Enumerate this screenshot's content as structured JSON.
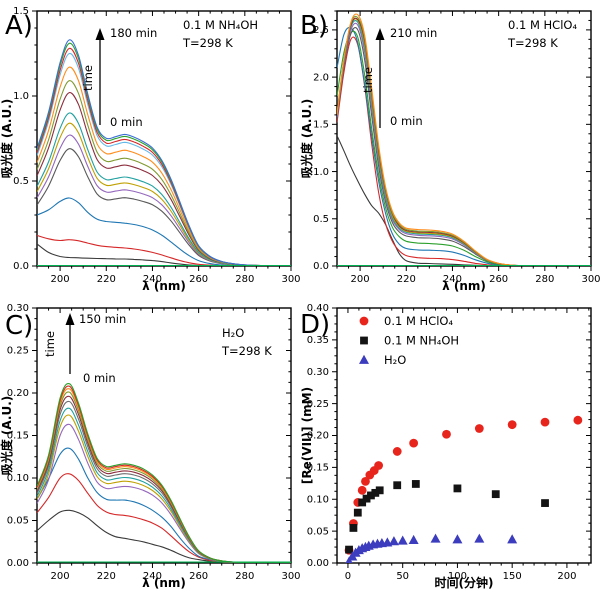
{
  "figure": {
    "background": "#ffffff"
  },
  "chart_data": [
    {
      "id": "A",
      "type": "line",
      "panel_label": "A)",
      "annotation_lines": [
        "0.1 M NH₄OH",
        "T=298 K"
      ],
      "arrow": {
        "top_label": "180 min",
        "bottom_label": "0 min",
        "side_label": "time"
      },
      "xlabel": "λ (nm)",
      "ylabel": "吸光度 (A.U.)",
      "xlim": [
        190,
        300
      ],
      "ylim": [
        0,
        1.5
      ],
      "xticks": [
        200,
        220,
        240,
        260,
        280,
        300
      ],
      "yticks": [
        0.0,
        0.5,
        1.0,
        1.5
      ],
      "y_decimals": 1,
      "x_minor_step": 5,
      "y_minor_step": 0.1,
      "wavelengths": [
        190,
        195,
        200,
        204,
        208,
        212,
        216,
        220,
        224,
        228,
        232,
        236,
        240,
        244,
        248,
        252,
        256,
        260,
        265,
        270,
        275,
        280,
        290,
        300
      ],
      "base_shape": [
        0.52,
        0.68,
        0.9,
        1.0,
        0.93,
        0.76,
        0.615,
        0.565,
        0.572,
        0.582,
        0.57,
        0.55,
        0.522,
        0.468,
        0.385,
        0.28,
        0.175,
        0.09,
        0.042,
        0.02,
        0.01,
        0.005,
        0.001,
        0
      ],
      "series": [
        {
          "color": "#3a3a3a",
          "values": [
            0.13,
            0.08,
            0.056,
            0.05,
            0.048,
            0.046,
            0.044,
            0.043,
            0.042,
            0.041,
            0.039,
            0.036,
            0.032,
            0.026,
            0.018,
            0.011,
            0.006,
            0.003,
            0.002,
            0.001,
            0,
            0,
            0,
            0
          ]
        },
        {
          "color": "#d62728",
          "values": [
            0.18,
            0.16,
            0.15,
            0.155,
            0.148,
            0.135,
            0.122,
            0.114,
            0.11,
            0.106,
            0.1,
            0.092,
            0.08,
            0.065,
            0.048,
            0.032,
            0.019,
            0.01,
            0.005,
            0.002,
            0.001,
            0,
            0,
            0
          ]
        },
        {
          "color": "#1f77b4",
          "values": [
            0.3,
            0.33,
            0.38,
            0.4,
            0.372,
            0.315,
            0.276,
            0.262,
            0.257,
            0.252,
            0.244,
            0.232,
            0.212,
            0.182,
            0.142,
            0.098,
            0.06,
            0.032,
            0.014,
            0.006,
            0.003,
            0.001,
            0,
            0
          ]
        },
        {
          "color": "#595959",
          "amp": 0.69
        },
        {
          "color": "#9467bd",
          "amp": 0.77
        },
        {
          "color": "#bfa000",
          "amp": 0.84
        },
        {
          "color": "#20a0a0",
          "amp": 0.9
        },
        {
          "color": "#8c2d3c",
          "amp": 1.02
        },
        {
          "color": "#7f9a2e",
          "amp": 1.09
        },
        {
          "color": "#ff8c1a",
          "amp": 1.17
        },
        {
          "color": "#63b8e8",
          "amp": 1.25
        },
        {
          "color": "#d62728",
          "amp": 1.28
        },
        {
          "color": "#2ca02c",
          "amp": 1.31
        },
        {
          "color": "#3b6fd4",
          "amp": 1.33
        },
        {
          "color": "#00b050",
          "flat": 0.003
        }
      ]
    },
    {
      "id": "B",
      "type": "line",
      "panel_label": "B)",
      "annotation_lines": [
        "0.1 M HClO₄",
        "T=298 K"
      ],
      "arrow": {
        "top_label": "210 min",
        "bottom_label": "0 min",
        "side_label": "time"
      },
      "xlabel": "λ (nm)",
      "ylabel": "吸光度 (A.U.)",
      "xlim": [
        190,
        300
      ],
      "ylim": [
        0,
        2.7
      ],
      "xticks": [
        200,
        220,
        240,
        260,
        280,
        300
      ],
      "yticks": [
        0.0,
        0.5,
        1.0,
        1.5,
        2.0,
        2.5
      ],
      "y_decimals": 1,
      "x_minor_step": 5,
      "y_minor_step": 0.1,
      "wavelengths": [
        190,
        193,
        196,
        199,
        202,
        205,
        208,
        211,
        214,
        217,
        220,
        225,
        230,
        235,
        240,
        245,
        250,
        255,
        260,
        265,
        270,
        280,
        290,
        300
      ],
      "base_shape": null,
      "series": [
        {
          "color": "#3a3a3a",
          "values": [
            1.38,
            1.22,
            1.05,
            0.9,
            0.76,
            0.64,
            0.56,
            0.44,
            0.28,
            0.13,
            0.055,
            0.03,
            0.026,
            0.022,
            0.018,
            0.012,
            0.007,
            0.004,
            0.002,
            0.001,
            0,
            0,
            0,
            0
          ]
        },
        {
          "color": "#d62728",
          "values": [
            1.52,
            2.05,
            2.4,
            2.34,
            1.9,
            1.3,
            0.78,
            0.45,
            0.26,
            0.16,
            0.11,
            0.088,
            0.082,
            0.078,
            0.068,
            0.05,
            0.028,
            0.013,
            0.006,
            0.002,
            0.001,
            0,
            0,
            0
          ]
        },
        {
          "color": "#1f77b4",
          "values": [
            2.1,
            2.45,
            2.52,
            2.36,
            1.92,
            1.38,
            0.9,
            0.56,
            0.34,
            0.23,
            0.185,
            0.17,
            0.167,
            0.162,
            0.147,
            0.112,
            0.066,
            0.03,
            0.012,
            0.005,
            0.002,
            0,
            0,
            0
          ]
        },
        {
          "color": "#2ca02c",
          "values": [
            1.8,
            2.26,
            2.47,
            2.42,
            2.02,
            1.46,
            0.97,
            0.62,
            0.41,
            0.31,
            0.262,
            0.243,
            0.238,
            0.23,
            0.212,
            0.166,
            0.1,
            0.045,
            0.018,
            0.007,
            0.002,
            0,
            0,
            0
          ]
        },
        {
          "color": "#595959",
          "values": [
            1.56,
            2.1,
            2.46,
            2.5,
            2.18,
            1.6,
            1.06,
            0.68,
            0.46,
            0.36,
            0.318,
            0.3,
            0.296,
            0.287,
            0.264,
            0.206,
            0.126,
            0.056,
            0.022,
            0.008,
            0.003,
            0,
            0,
            0
          ]
        },
        {
          "color": "#9467bd",
          "values": [
            1.58,
            2.13,
            2.5,
            2.55,
            2.26,
            1.68,
            1.12,
            0.72,
            0.49,
            0.385,
            0.342,
            0.325,
            0.32,
            0.311,
            0.286,
            0.223,
            0.136,
            0.06,
            0.024,
            0.009,
            0.003,
            0,
            0,
            0
          ]
        },
        {
          "color": "#20a0a0",
          "values": [
            1.6,
            2.15,
            2.53,
            2.58,
            2.31,
            1.74,
            1.16,
            0.75,
            0.51,
            0.4,
            0.356,
            0.34,
            0.335,
            0.326,
            0.299,
            0.233,
            0.141,
            0.062,
            0.025,
            0.009,
            0.003,
            0,
            0,
            0
          ]
        },
        {
          "color": "#bfa000",
          "values": [
            1.61,
            2.17,
            2.55,
            2.6,
            2.35,
            1.78,
            1.19,
            0.78,
            0.53,
            0.415,
            0.366,
            0.35,
            0.346,
            0.336,
            0.308,
            0.239,
            0.145,
            0.064,
            0.026,
            0.01,
            0.003,
            0,
            0,
            0
          ]
        },
        {
          "color": "#8c2d3c",
          "values": [
            1.6,
            2.16,
            2.55,
            2.61,
            2.38,
            1.82,
            1.22,
            0.8,
            0.55,
            0.425,
            0.376,
            0.36,
            0.356,
            0.346,
            0.317,
            0.246,
            0.149,
            0.066,
            0.026,
            0.01,
            0.003,
            0,
            0,
            0
          ]
        },
        {
          "color": "#7f9a2e",
          "values": [
            1.62,
            2.18,
            2.57,
            2.63,
            2.41,
            1.85,
            1.25,
            0.82,
            0.56,
            0.44,
            0.386,
            0.37,
            0.366,
            0.355,
            0.325,
            0.252,
            0.152,
            0.067,
            0.027,
            0.01,
            0.003,
            0,
            0,
            0
          ]
        },
        {
          "color": "#ff8c1a",
          "values": [
            1.6,
            2.18,
            2.58,
            2.66,
            2.44,
            1.89,
            1.28,
            0.84,
            0.58,
            0.455,
            0.4,
            0.386,
            0.381,
            0.369,
            0.338,
            0.262,
            0.158,
            0.07,
            0.028,
            0.011,
            0.004,
            0,
            0,
            0
          ]
        },
        {
          "color": "#00b050",
          "flat": 0.005
        }
      ]
    },
    {
      "id": "C",
      "type": "line",
      "panel_label": "C)",
      "annotation_lines": [
        "H₂O",
        "T=298 K"
      ],
      "arrow": {
        "top_label": "150 min",
        "bottom_label": "0 min",
        "side_label": "time"
      },
      "xlabel": "λ (nm)",
      "ylabel": "吸光度 (A.U.)",
      "xlim": [
        190,
        300
      ],
      "ylim": [
        0,
        0.3
      ],
      "xticks": [
        200,
        220,
        240,
        260,
        280,
        300
      ],
      "yticks": [
        0.0,
        0.05,
        0.1,
        0.15,
        0.2,
        0.25,
        0.3
      ],
      "y_decimals": 2,
      "x_minor_step": 5,
      "y_minor_step": 0.0125,
      "wavelengths": [
        190,
        195,
        200,
        204,
        208,
        212,
        216,
        220,
        224,
        228,
        232,
        236,
        240,
        244,
        248,
        252,
        256,
        260,
        265,
        270,
        275,
        280,
        290,
        300
      ],
      "base_shape": [
        0.43,
        0.6,
        0.92,
        1.0,
        0.89,
        0.72,
        0.585,
        0.538,
        0.545,
        0.553,
        0.545,
        0.525,
        0.49,
        0.435,
        0.35,
        0.245,
        0.145,
        0.068,
        0.028,
        0.012,
        0.005,
        0.002,
        0,
        0
      ],
      "series": [
        {
          "color": "#3a3a3a",
          "values": [
            0.038,
            0.05,
            0.06,
            0.062,
            0.059,
            0.053,
            0.044,
            0.036,
            0.031,
            0.029,
            0.027,
            0.025,
            0.022,
            0.019,
            0.015,
            0.01,
            0.006,
            0.004,
            0.002,
            0.001,
            0,
            0,
            0,
            0
          ]
        },
        {
          "color": "#d62728",
          "values": [
            0.059,
            0.077,
            0.1,
            0.105,
            0.097,
            0.082,
            0.068,
            0.06,
            0.057,
            0.056,
            0.054,
            0.051,
            0.047,
            0.041,
            0.032,
            0.022,
            0.013,
            0.007,
            0.003,
            0.001,
            0,
            0,
            0,
            0
          ]
        },
        {
          "color": "#1f77b4",
          "values": [
            0.075,
            0.099,
            0.128,
            0.135,
            0.122,
            0.1,
            0.083,
            0.075,
            0.074,
            0.074,
            0.072,
            0.068,
            0.062,
            0.054,
            0.043,
            0.029,
            0.017,
            0.008,
            0.004,
            0.002,
            0.001,
            0,
            0,
            0
          ]
        },
        {
          "color": "#9467bd",
          "amp": 0.163
        },
        {
          "color": "#bfa000",
          "amp": 0.174
        },
        {
          "color": "#20a0a0",
          "amp": 0.182
        },
        {
          "color": "#6e6e6e",
          "amp": 0.19
        },
        {
          "color": "#8c2d3c",
          "amp": 0.196
        },
        {
          "color": "#7f9a2e",
          "amp": 0.201
        },
        {
          "color": "#ff8c1a",
          "amp": 0.205
        },
        {
          "color": "#d62728",
          "amp": 0.208
        },
        {
          "color": "#2ca02c",
          "amp": 0.211
        },
        {
          "color": "#00b050",
          "flat": 0.001
        }
      ]
    },
    {
      "id": "D",
      "type": "scatter",
      "panel_label": "D)",
      "xlabel": "时间(分钟)",
      "ylabel": "[Re(VII)] (mM)",
      "xlim": [
        -10,
        222
      ],
      "ylim": [
        0,
        0.4
      ],
      "xticks": [
        0,
        50,
        100,
        150,
        200
      ],
      "yticks": [
        0.0,
        0.05,
        0.1,
        0.15,
        0.2,
        0.25,
        0.3,
        0.35,
        0.4
      ],
      "y_decimals": 2,
      "x_minor_step": 10,
      "y_minor_step": 0.0125,
      "legend_position": "top-left",
      "series": [
        {
          "name": "0.1 M HClO₄",
          "marker": "circle",
          "color": "#e8251d",
          "points": [
            [
              1,
              0.02
            ],
            [
              5,
              0.062
            ],
            [
              9,
              0.095
            ],
            [
              13,
              0.114
            ],
            [
              16,
              0.128
            ],
            [
              20,
              0.138
            ],
            [
              24,
              0.145
            ],
            [
              28,
              0.153
            ],
            [
              45,
              0.175
            ],
            [
              60,
              0.188
            ],
            [
              90,
              0.202
            ],
            [
              120,
              0.211
            ],
            [
              150,
              0.217
            ],
            [
              180,
              0.221
            ],
            [
              210,
              0.224
            ]
          ]
        },
        {
          "name": "0.1 M NH₄OH",
          "marker": "square",
          "color": "#141414",
          "points": [
            [
              1,
              0.021
            ],
            [
              5,
              0.055
            ],
            [
              9,
              0.079
            ],
            [
              13,
              0.095
            ],
            [
              17,
              0.101
            ],
            [
              21,
              0.106
            ],
            [
              25,
              0.11
            ],
            [
              29,
              0.114
            ],
            [
              45,
              0.122
            ],
            [
              62,
              0.124
            ],
            [
              100,
              0.117
            ],
            [
              135,
              0.108
            ],
            [
              180,
              0.094
            ]
          ]
        },
        {
          "name": "H₂O",
          "marker": "triangle",
          "color": "#3c3cbe",
          "points": [
            [
              1,
              0.002
            ],
            [
              4,
              0.01
            ],
            [
              7,
              0.016
            ],
            [
              10,
              0.02
            ],
            [
              13,
              0.023
            ],
            [
              16,
              0.025
            ],
            [
              19,
              0.027
            ],
            [
              23,
              0.029
            ],
            [
              27,
              0.03
            ],
            [
              31,
              0.031
            ],
            [
              36,
              0.032
            ],
            [
              42,
              0.034
            ],
            [
              50,
              0.035
            ],
            [
              60,
              0.036
            ],
            [
              80,
              0.038
            ],
            [
              100,
              0.037
            ],
            [
              120,
              0.038
            ],
            [
              150,
              0.037
            ]
          ]
        }
      ]
    }
  ]
}
